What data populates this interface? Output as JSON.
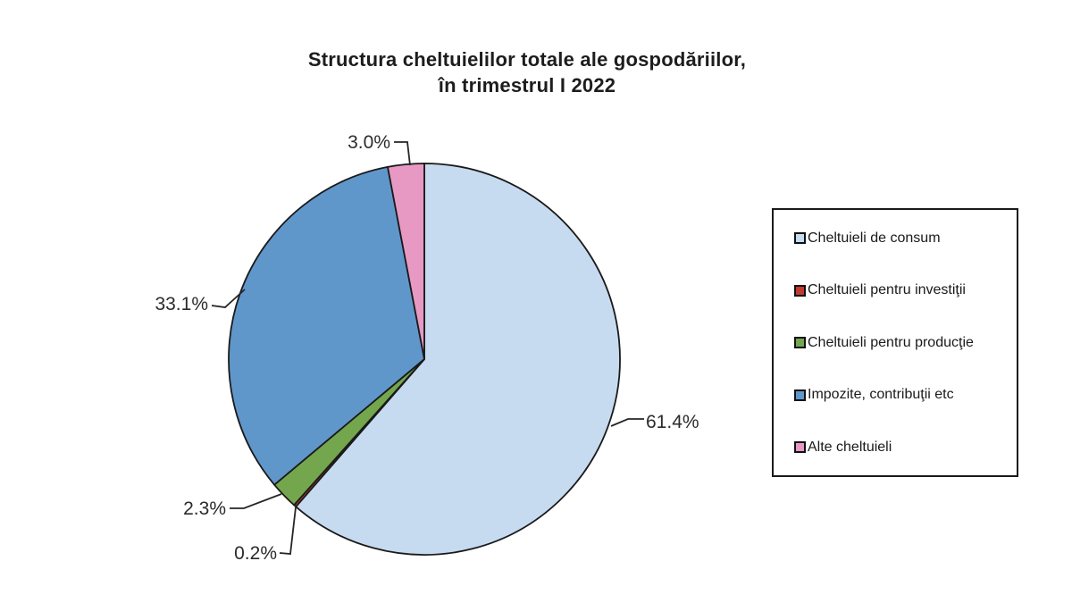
{
  "chart_data": {
    "type": "pie",
    "title": "Structura cheltuielilor totale ale gospodăriilor, în trimestrul I 2022",
    "title_lines": [
      "Structura cheltuielilor totale ale gospodăriilor,",
      "în trimestrul I 2022"
    ],
    "unit": "%",
    "labels": [
      "Cheltuieli de consum",
      "Cheltuieli pentru investiţii",
      "Cheltuieli pentru producţie",
      "Impozite, contribuţii etc",
      "Alte cheltuieli"
    ],
    "values": [
      61.4,
      0.2,
      2.3,
      33.1,
      3.0
    ],
    "value_labels": [
      "61.4%",
      "0.2%",
      "2.3%",
      "33.1%",
      "3.0%"
    ],
    "series": [
      {
        "label": "Cheltuieli de consum",
        "value": 61.4,
        "color": "#c6dbf0"
      },
      {
        "label": "Cheltuieli pentru investiţii",
        "value": 0.2,
        "color": "#c23b33"
      },
      {
        "label": "Cheltuieli pentru producţie",
        "value": 2.3,
        "color": "#74a74d"
      },
      {
        "label": "Impozite, contribuţii etc",
        "value": 33.1,
        "color": "#6097cb"
      },
      {
        "label": "Alte cheltuieli",
        "value": 3.0,
        "color": "#e799c4"
      }
    ],
    "start_angle_deg": 0,
    "direction": "clockwise",
    "legend_position": "right",
    "outline_color": "#1a1a1a",
    "background": "#ffffff"
  }
}
